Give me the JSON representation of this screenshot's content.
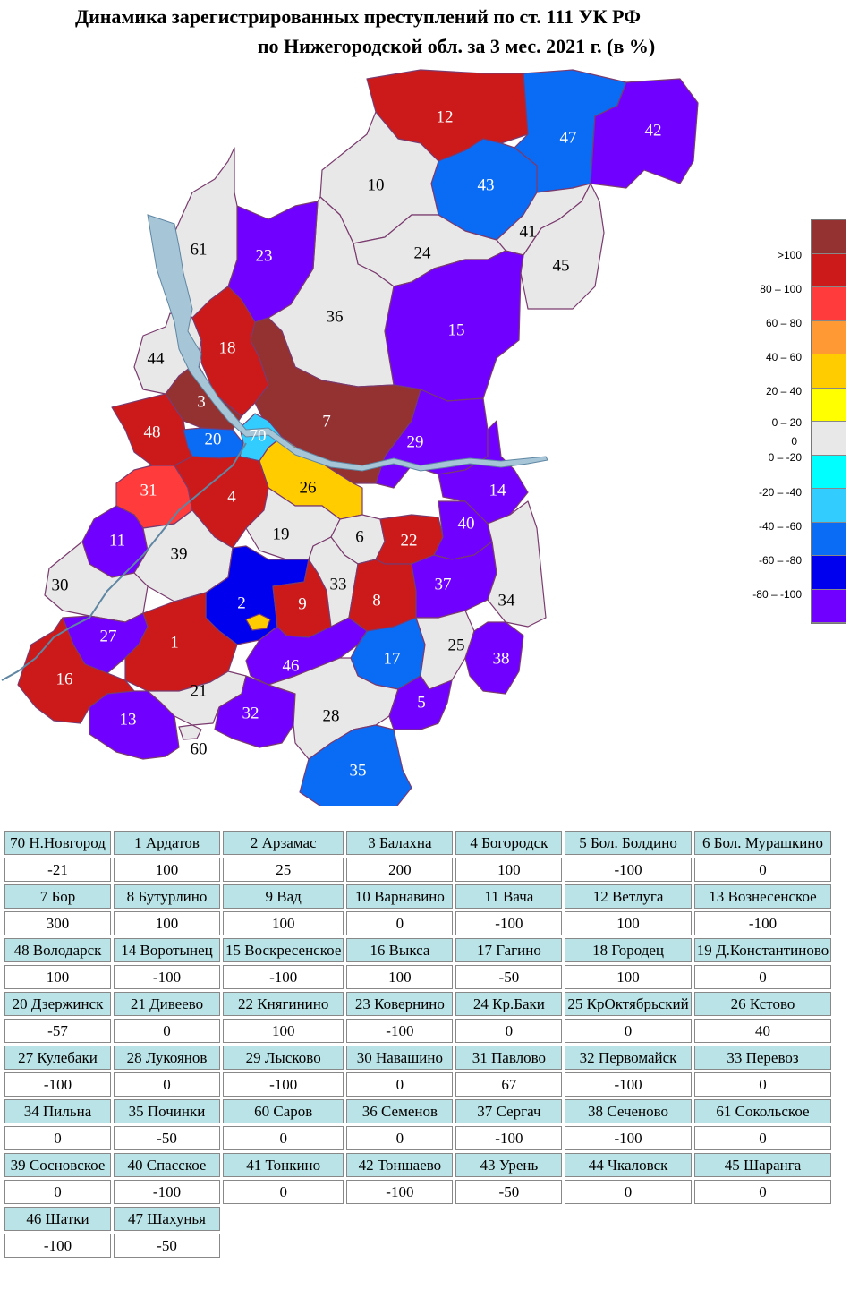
{
  "title_line1": "Динамика зарегистрированных преступлений по ст. 111 УК РФ",
  "title_line2": "по Нижегородской обл. за 3 мес. 2021 г. (в %)",
  "colors": {
    "gt100": "#943232",
    "80_100": "#cc1a1a",
    "60_80": "#ff3b3b",
    "40_60": "#ff9933",
    "20_40": "#ffcc00",
    "0_20": "#ffff00",
    "zero": "#e8e8e8",
    "m0_20": "#00ffff",
    "m20_40": "#33ccff",
    "m40_60": "#0a6cf5",
    "m60_80": "#0000ee",
    "m80_100": "#7000ff"
  },
  "legend": [
    ">100",
    "80 – 100",
    "60 – 80",
    "40 – 60",
    "20 – 40",
    "0 – 20",
    "0",
    "0 – -20",
    "-20 – -40",
    "-40 – -60",
    "-60 – -80",
    "-80 – -100"
  ],
  "districts": [
    {
      "name": "70 Н.Новгород",
      "value": "-21"
    },
    {
      "name": "1 Ардатов",
      "value": "100"
    },
    {
      "name": "2 Арзамас",
      "value": "25"
    },
    {
      "name": "3 Балахна",
      "value": "200"
    },
    {
      "name": "4 Богородск",
      "value": "100"
    },
    {
      "name": "5 Бол. Болдино",
      "value": "-100"
    },
    {
      "name": "6 Бол. Мурашкино",
      "value": "0"
    },
    {
      "name": "7 Бор",
      "value": "300"
    },
    {
      "name": "8 Бутурлино",
      "value": "100"
    },
    {
      "name": "9 Вад",
      "value": "100"
    },
    {
      "name": "10 Варнавино",
      "value": "0"
    },
    {
      "name": "11 Вача",
      "value": "-100"
    },
    {
      "name": "12 Ветлуга",
      "value": "100"
    },
    {
      "name": "13 Вознесенское",
      "value": "-100"
    },
    {
      "name": "48 Володарск",
      "value": "100"
    },
    {
      "name": "14 Воротынец",
      "value": "-100"
    },
    {
      "name": "15 Воскресенское",
      "value": "-100"
    },
    {
      "name": "16 Выкса",
      "value": "100"
    },
    {
      "name": "17 Гагино",
      "value": "-50"
    },
    {
      "name": "18 Городец",
      "value": "100"
    },
    {
      "name": "19 Д.Константиново",
      "value": "0"
    },
    {
      "name": "20 Дзержинск",
      "value": "-57"
    },
    {
      "name": "21 Дивеево",
      "value": "0"
    },
    {
      "name": "22 Княгинино",
      "value": "100"
    },
    {
      "name": "23 Ковернино",
      "value": "-100"
    },
    {
      "name": "24 Кр.Баки",
      "value": "0"
    },
    {
      "name": "25 КрОктябрьский",
      "value": "0"
    },
    {
      "name": "26 Кстово",
      "value": "40"
    },
    {
      "name": "27 Кулебаки",
      "value": "-100"
    },
    {
      "name": "28 Лукоянов",
      "value": "0"
    },
    {
      "name": "29 Лысково",
      "value": "-100"
    },
    {
      "name": "30 Навашино",
      "value": "0"
    },
    {
      "name": "31 Павлово",
      "value": "67"
    },
    {
      "name": "32 Первомайск",
      "value": "-100"
    },
    {
      "name": "33 Перевоз",
      "value": "0"
    },
    {
      "name": "34 Пильна",
      "value": "0"
    },
    {
      "name": "35 Починки",
      "value": "-50"
    },
    {
      "name": "60 Саров",
      "value": "0"
    },
    {
      "name": "36 Семенов",
      "value": "0"
    },
    {
      "name": "37 Сергач",
      "value": "-100"
    },
    {
      "name": "38 Сеченово",
      "value": "-100"
    },
    {
      "name": "61 Сокольское",
      "value": "0"
    },
    {
      "name": "39 Сосновское",
      "value": "0"
    },
    {
      "name": "40 Спасское",
      "value": "-100"
    },
    {
      "name": "41 Тонкино",
      "value": "0"
    },
    {
      "name": "42 Тоншаево",
      "value": "-100"
    },
    {
      "name": "43 Урень",
      "value": "-50"
    },
    {
      "name": "44 Чкаловск",
      "value": "0"
    },
    {
      "name": "45 Шаранга",
      "value": "0"
    },
    {
      "name": "46 Шатки",
      "value": "-100"
    },
    {
      "name": "47 Шахунья",
      "value": "-50"
    }
  ],
  "map_labels": {
    "1": "1",
    "2": "2",
    "3": "3",
    "4": "4",
    "5": "5",
    "6": "6",
    "7": "7",
    "8": "8",
    "9": "9",
    "10": "10",
    "11": "11",
    "12": "12",
    "13": "13",
    "14": "14",
    "15": "15",
    "16": "16",
    "17": "17",
    "18": "18",
    "19": "19",
    "20": "20",
    "21": "21",
    "22": "22",
    "23": "23",
    "24": "24",
    "25": "25",
    "26": "26",
    "27": "27",
    "28": "28",
    "29": "29",
    "30": "30",
    "31": "31",
    "32": "32",
    "33": "33",
    "34": "34",
    "35": "35",
    "36": "36",
    "37": "37",
    "38": "38",
    "39": "39",
    "40": "40",
    "41": "41",
    "42": "42",
    "43": "43",
    "44": "44",
    "45": "45",
    "46": "46",
    "47": "47",
    "48": "48",
    "60": "60",
    "61": "61",
    "70": "70"
  }
}
